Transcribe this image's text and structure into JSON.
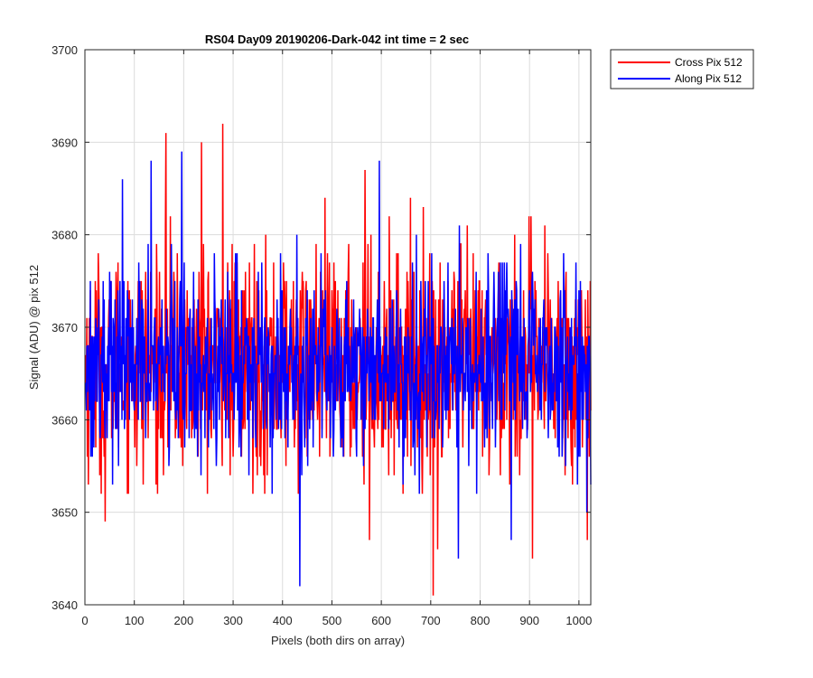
{
  "chart_data": {
    "type": "line",
    "title": "RS04 Day09 20190206-Dark-042 int time = 2 sec",
    "xlabel": "Pixels (both dirs on array)",
    "ylabel": "Signal (ADU) @ pix 512",
    "xlim": [
      0,
      1024
    ],
    "ylim": [
      3640,
      3700
    ],
    "x_ticks": [
      0,
      100,
      200,
      300,
      400,
      500,
      600,
      700,
      800,
      900,
      1000
    ],
    "y_ticks": [
      3640,
      3650,
      3660,
      3670,
      3680,
      3690,
      3700
    ],
    "grid": true,
    "legend_position": "outside-top-right",
    "series_count": 1024,
    "series": [
      {
        "name": "Cross Pix 512",
        "color": "#ff0000",
        "mean": 3666,
        "spread": 6,
        "extremes": [
          [
            163,
            3691
          ],
          [
            235,
            3690
          ],
          [
            278,
            3692
          ],
          [
            566,
            3687
          ],
          [
            704,
            3641
          ],
          [
            713,
            3646
          ],
          [
            905,
            3645
          ],
          [
            1016,
            3647
          ],
          [
            40,
            3649
          ],
          [
            575,
            3647
          ]
        ]
      },
      {
        "name": "Along Pix 512",
        "color": "#0000ff",
        "mean": 3666,
        "spread": 5,
        "extremes": [
          [
            75,
            3686
          ],
          [
            133,
            3688
          ],
          [
            195,
            3689
          ],
          [
            434,
            3642
          ],
          [
            595,
            3688
          ],
          [
            755,
            3645
          ],
          [
            862,
            3647
          ],
          [
            1015,
            3650
          ]
        ]
      }
    ]
  }
}
